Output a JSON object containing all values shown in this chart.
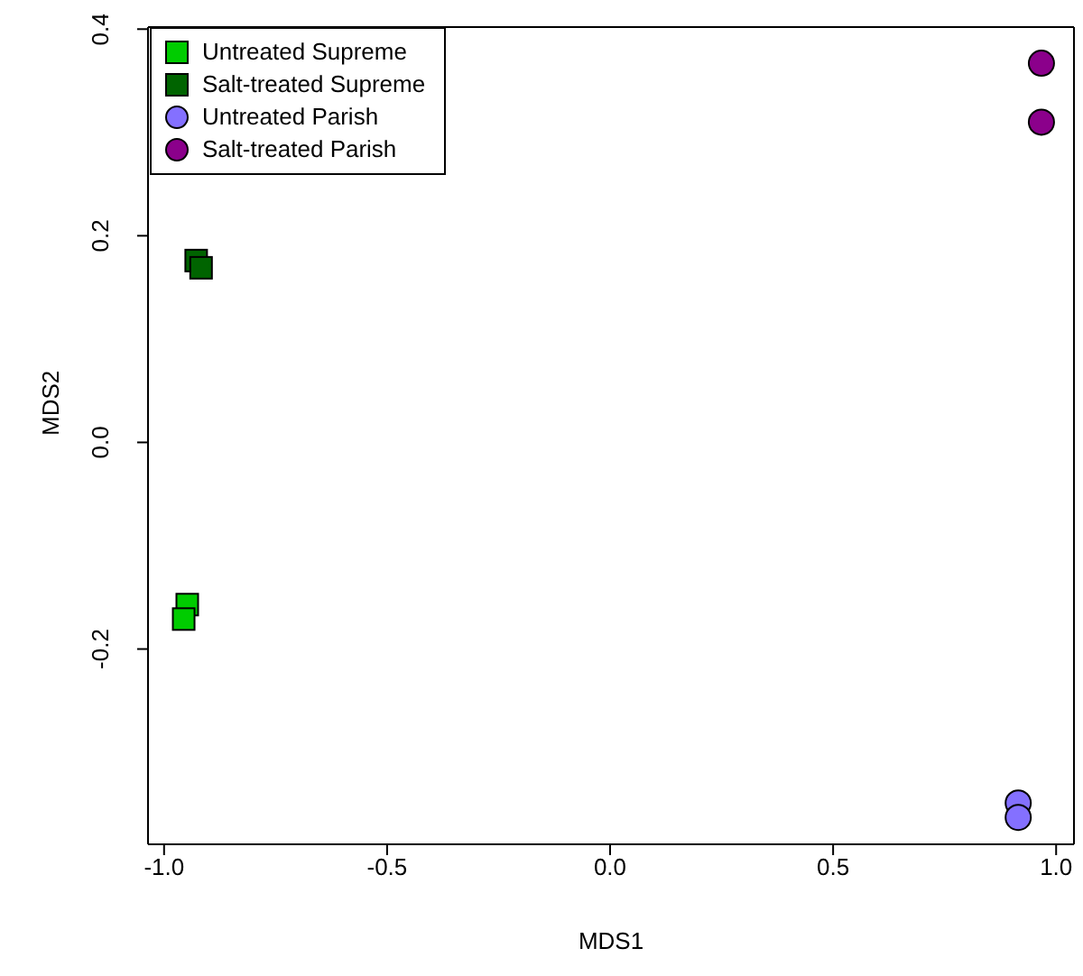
{
  "chart_data": {
    "type": "scatter",
    "xlabel": "MDS1",
    "ylabel": "MDS2",
    "xlim": [
      -1.036,
      1.04
    ],
    "ylim": [
      -0.389,
      0.402
    ],
    "xticks": [
      {
        "value": -1,
        "label": "-1.0"
      },
      -0.5,
      {
        "value": 0,
        "label": "0.0"
      },
      0.5,
      {
        "value": 1,
        "label": "1.0"
      }
    ],
    "yticks": [
      -0.2,
      {
        "value": 0,
        "label": "0.0"
      },
      0.2,
      0.4
    ],
    "legend": "top left",
    "series": [
      {
        "name": "Untreated Supreme",
        "color": "#00cc00",
        "marker": "square",
        "x": [
          -0.948,
          -0.956
        ],
        "values": [
          -0.157,
          -0.171
        ]
      },
      {
        "name": "Salt-treated Supreme",
        "color": "#006400",
        "marker": "square",
        "x": [
          -0.928,
          -0.917
        ],
        "values": [
          0.176,
          0.169
        ]
      },
      {
        "name": "Untreated Parish",
        "color": "#8470ff",
        "marker": "circle",
        "x": [
          0.915,
          0.915
        ],
        "values": [
          -0.349,
          -0.363
        ]
      },
      {
        "name": "Salt-treated Parish",
        "color": "#8b008b",
        "marker": "circle",
        "x": [
          0.967,
          0.967
        ],
        "values": [
          0.367,
          0.31
        ]
      }
    ]
  }
}
